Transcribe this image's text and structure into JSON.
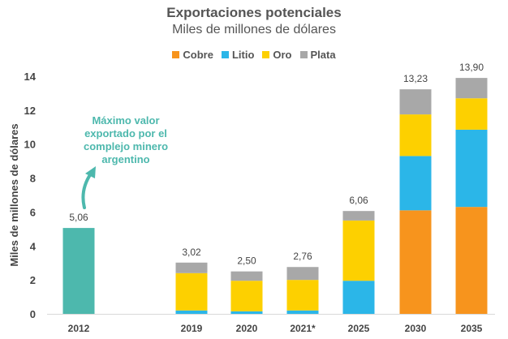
{
  "colors": {
    "Cobre": "#f7941d",
    "Litio": "#2bb6e8",
    "Oro": "#fdd000",
    "Plata": "#a8a8a8",
    "historical": "#4db8ad",
    "annotation": "#4db8ad",
    "axis_text": "#444444"
  },
  "chart_data": {
    "type": "bar",
    "title": "Exportaciones potenciales",
    "subtitle": "Miles de millones de dólares",
    "ylabel": "Miles de millones de dólares",
    "xlabel": "",
    "ylim": [
      0,
      14
    ],
    "yticks": [
      0,
      2,
      4,
      6,
      8,
      10,
      12,
      14
    ],
    "grid": false,
    "legend_position": "top-center",
    "categories": [
      "2012",
      "2019",
      "2020",
      "2021*",
      "2025",
      "2030",
      "2035"
    ],
    "series": [
      {
        "name": "Cobre",
        "values": [
          0,
          0.0,
          0.0,
          0.0,
          0.0,
          6.1,
          6.3
        ]
      },
      {
        "name": "Litio",
        "values": [
          0,
          0.2,
          0.15,
          0.2,
          1.95,
          3.2,
          4.55
        ]
      },
      {
        "name": "Oro",
        "values": [
          0,
          2.2,
          1.8,
          1.8,
          3.55,
          2.45,
          1.85
        ]
      },
      {
        "name": "Plata",
        "values": [
          0,
          0.62,
          0.55,
          0.76,
          0.56,
          1.48,
          1.2
        ]
      }
    ],
    "historical": {
      "category": "2012",
      "value": 5.06
    },
    "totals": [
      "5,06",
      "3,02",
      "2,50",
      "2,76",
      "6,06",
      "13,23",
      "13,90"
    ],
    "annotation": {
      "text_lines": [
        "Máximo valor",
        "exportado por el",
        "complejo minero",
        "argentino"
      ],
      "target": "2012"
    }
  }
}
